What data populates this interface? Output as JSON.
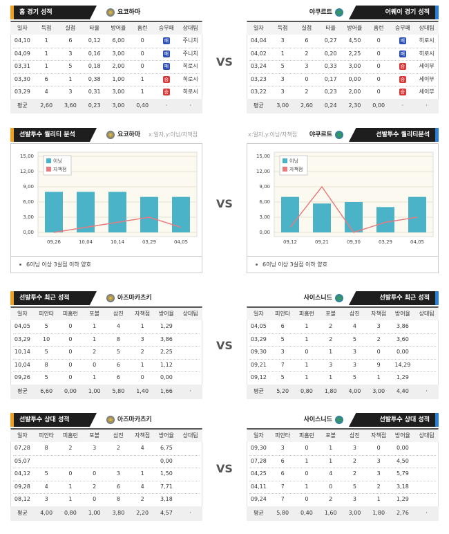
{
  "sections": [
    {
      "vs": "VS",
      "left": {
        "title": "홈 경기 성적",
        "team": "요코하마",
        "columns": [
          "일자",
          "득점",
          "실점",
          "타율",
          "방어율",
          "홈런",
          "승무패",
          "상대팀"
        ],
        "rows": [
          [
            "04,10",
            "1",
            "6",
            "0,12",
            "6,00",
            "0",
            {
              "text": "패",
              "color": "#2b4fb5"
            },
            "주니치"
          ],
          [
            "04,09",
            "1",
            "3",
            "0,16",
            "3,00",
            "0",
            {
              "text": "패",
              "color": "#2b4fb5"
            },
            "주니치"
          ],
          [
            "03,31",
            "1",
            "5",
            "0,18",
            "2,00",
            "0",
            {
              "text": "패",
              "color": "#2b4fb5"
            },
            "히로시"
          ],
          [
            "03,30",
            "6",
            "1",
            "0,38",
            "1,00",
            "1",
            {
              "text": "승",
              "color": "#d83a3a"
            },
            "히로시"
          ],
          [
            "03,29",
            "4",
            "3",
            "0,31",
            "3,00",
            "1",
            {
              "text": "승",
              "color": "#d83a3a"
            },
            "히로시"
          ]
        ],
        "average": [
          "평균",
          "2,60",
          "3,60",
          "0,23",
          "3,00",
          "0,40",
          "·",
          "·"
        ]
      },
      "right": {
        "title": "어웨이 경기 성적",
        "team": "야쿠르트",
        "columns": [
          "일자",
          "득점",
          "실점",
          "타율",
          "방어율",
          "홈런",
          "승무패",
          "상대팀"
        ],
        "rows": [
          [
            "04,04",
            "3",
            "6",
            "0,27",
            "4,50",
            "0",
            {
              "text": "패",
              "color": "#2b4fb5"
            },
            "히로시"
          ],
          [
            "04,02",
            "1",
            "2",
            "0,20",
            "2,25",
            "0",
            {
              "text": "패",
              "color": "#2b4fb5"
            },
            "히로시"
          ],
          [
            "03,24",
            "5",
            "3",
            "0,33",
            "3,00",
            "0",
            {
              "text": "승",
              "color": "#d83a3a"
            },
            "세이부"
          ],
          [
            "03,23",
            "3",
            "0",
            "0,17",
            "0,00",
            "0",
            {
              "text": "승",
              "color": "#d83a3a"
            },
            "세이부"
          ],
          [
            "03,22",
            "3",
            "2",
            "0,23",
            "2,00",
            "0",
            {
              "text": "승",
              "color": "#d83a3a"
            },
            "세이부"
          ]
        ],
        "average": [
          "평균",
          "3,00",
          "2,60",
          "0,24",
          "2,30",
          "0,00",
          "·",
          "·"
        ]
      }
    },
    {
      "vs": "VS",
      "left": {
        "title": "선발투수 퀄리티 분석",
        "team": "요코하마",
        "note": "x:일자,y:이닝/자책점",
        "chart": {
          "type": "bar-line",
          "categories": [
            "09,26",
            "10,04",
            "10,14",
            "03,29",
            "04,05"
          ],
          "series": [
            {
              "name": "이닝",
              "color": "#4bb3c7",
              "values": [
                8,
                8,
                8,
                7,
                7
              ]
            },
            {
              "name": "자책점",
              "color": "#e87b80",
              "values": [
                0,
                1,
                2,
                3,
                1
              ]
            }
          ],
          "ylim": [
            0,
            15
          ],
          "yticks": [
            {
              "value": 0,
              "label": "0,00"
            },
            {
              "value": 3,
              "label": "3,00"
            },
            {
              "value": 6,
              "label": "6,00"
            },
            {
              "value": 9,
              "label": "9,00"
            },
            {
              "value": 12,
              "label": "12,00"
            },
            {
              "value": 15,
              "label": "15,00"
            }
          ]
        },
        "footnote": "6이닝 이상 3실점 이하 양호"
      },
      "right": {
        "title": "선발투수 퀄리티분석",
        "team": "야쿠르트",
        "note": "x:일자,y:이닝/자책점",
        "chart": {
          "type": "bar-line",
          "categories": [
            "09,12",
            "09,21",
            "09,30",
            "03,29",
            "04,05"
          ],
          "series": [
            {
              "name": "이닝",
              "color": "#4bb3c7",
              "values": [
                7,
                5.7,
                6,
                5,
                7
              ]
            },
            {
              "name": "자책점",
              "color": "#e87b80",
              "values": [
                1,
                9,
                0,
                2,
                3
              ]
            }
          ],
          "ylim": [
            0,
            15
          ],
          "yticks": [
            {
              "value": 0,
              "label": "0,00"
            },
            {
              "value": 3,
              "label": "3,00"
            },
            {
              "value": 6,
              "label": "6,00"
            },
            {
              "value": 9,
              "label": "9,00"
            },
            {
              "value": 12,
              "label": "12,00"
            },
            {
              "value": 15,
              "label": "15,00"
            }
          ]
        },
        "footnote": "6이닝 이상 3실점 이하 양호"
      }
    },
    {
      "vs": "VS",
      "left": {
        "title": "선발투수 최근 성적",
        "team": "아즈마카츠키",
        "columns": [
          "일자",
          "피안타",
          "피홈런",
          "포볼",
          "삼진",
          "자책점",
          "방어율",
          "상대팀"
        ],
        "rows": [
          [
            "04,05",
            "5",
            "0",
            "1",
            "4",
            "1",
            "1,29"
          ],
          [
            "03,29",
            "10",
            "0",
            "1",
            "8",
            "3",
            "3,86"
          ],
          [
            "10,14",
            "5",
            "0",
            "2",
            "5",
            "2",
            "2,25"
          ],
          [
            "10,04",
            "8",
            "0",
            "0",
            "6",
            "1",
            "1,12"
          ],
          [
            "09,26",
            "5",
            "0",
            "1",
            "6",
            "0",
            "0,00"
          ]
        ],
        "average": [
          "평균",
          "6,60",
          "0,00",
          "1,00",
          "5,80",
          "1,40",
          "1,66",
          "·"
        ]
      },
      "right": {
        "title": "선발투수 최근 성적",
        "team": "사이스니드",
        "columns": [
          "일자",
          "피안타",
          "피홈런",
          "포볼",
          "삼진",
          "자책점",
          "방어율",
          "상대팀"
        ],
        "rows": [
          [
            "04,05",
            "6",
            "1",
            "2",
            "4",
            "3",
            "3,86"
          ],
          [
            "03,29",
            "5",
            "1",
            "2",
            "5",
            "2",
            "3,60"
          ],
          [
            "09,30",
            "3",
            "0",
            "1",
            "3",
            "0",
            "0,00"
          ],
          [
            "09,21",
            "7",
            "1",
            "3",
            "3",
            "9",
            "14,29"
          ],
          [
            "09,12",
            "5",
            "1",
            "1",
            "5",
            "1",
            "1,29"
          ]
        ],
        "average": [
          "평균",
          "5,20",
          "0,80",
          "1,80",
          "4,00",
          "3,00",
          "4,40",
          "·"
        ]
      }
    },
    {
      "vs": "VS",
      "left": {
        "title": "선발투수 상대 성적",
        "team": "아즈마카츠키",
        "columns": [
          "일자",
          "피안타",
          "피홈런",
          "포볼",
          "삼진",
          "자책점",
          "방어율",
          "상대팀"
        ],
        "rows": [
          [
            "07,28",
            "8",
            "2",
            "3",
            "2",
            "4",
            "6,75"
          ],
          [
            "05,07",
            null,
            null,
            null,
            null,
            null,
            "0,00"
          ],
          [
            "04,12",
            "5",
            "0",
            "0",
            "3",
            "1",
            "1,50"
          ],
          [
            "09,28",
            "4",
            "1",
            "2",
            "6",
            "4",
            "7,71"
          ],
          [
            "08,12",
            "3",
            "1",
            "0",
            "8",
            "2",
            "3,18"
          ]
        ],
        "average": [
          "평균",
          "4,00",
          "0,80",
          "1,00",
          "3,80",
          "2,20",
          "4,57",
          "·"
        ]
      },
      "right": {
        "title": "선발투수 상대 성적",
        "team": "사이스니드",
        "columns": [
          "일자",
          "피안타",
          "피홈런",
          "포볼",
          "삼진",
          "자책점",
          "방어율",
          "상대팀"
        ],
        "rows": [
          [
            "09,30",
            "3",
            "0",
            "1",
            "3",
            "0",
            "0,00"
          ],
          [
            "07,28",
            "6",
            "1",
            "1",
            "2",
            "3",
            "4,50"
          ],
          [
            "04,25",
            "6",
            "0",
            "4",
            "2",
            "3",
            "5,79"
          ],
          [
            "04,11",
            "7",
            "1",
            "0",
            "5",
            "2",
            "3,18"
          ],
          [
            "09,24",
            "7",
            "0",
            "2",
            "3",
            "1",
            "1,29"
          ]
        ],
        "average": [
          "평균",
          "5,80",
          "0,40",
          "1,60",
          "3,00",
          "1,80",
          "2,76",
          "·"
        ]
      }
    }
  ]
}
